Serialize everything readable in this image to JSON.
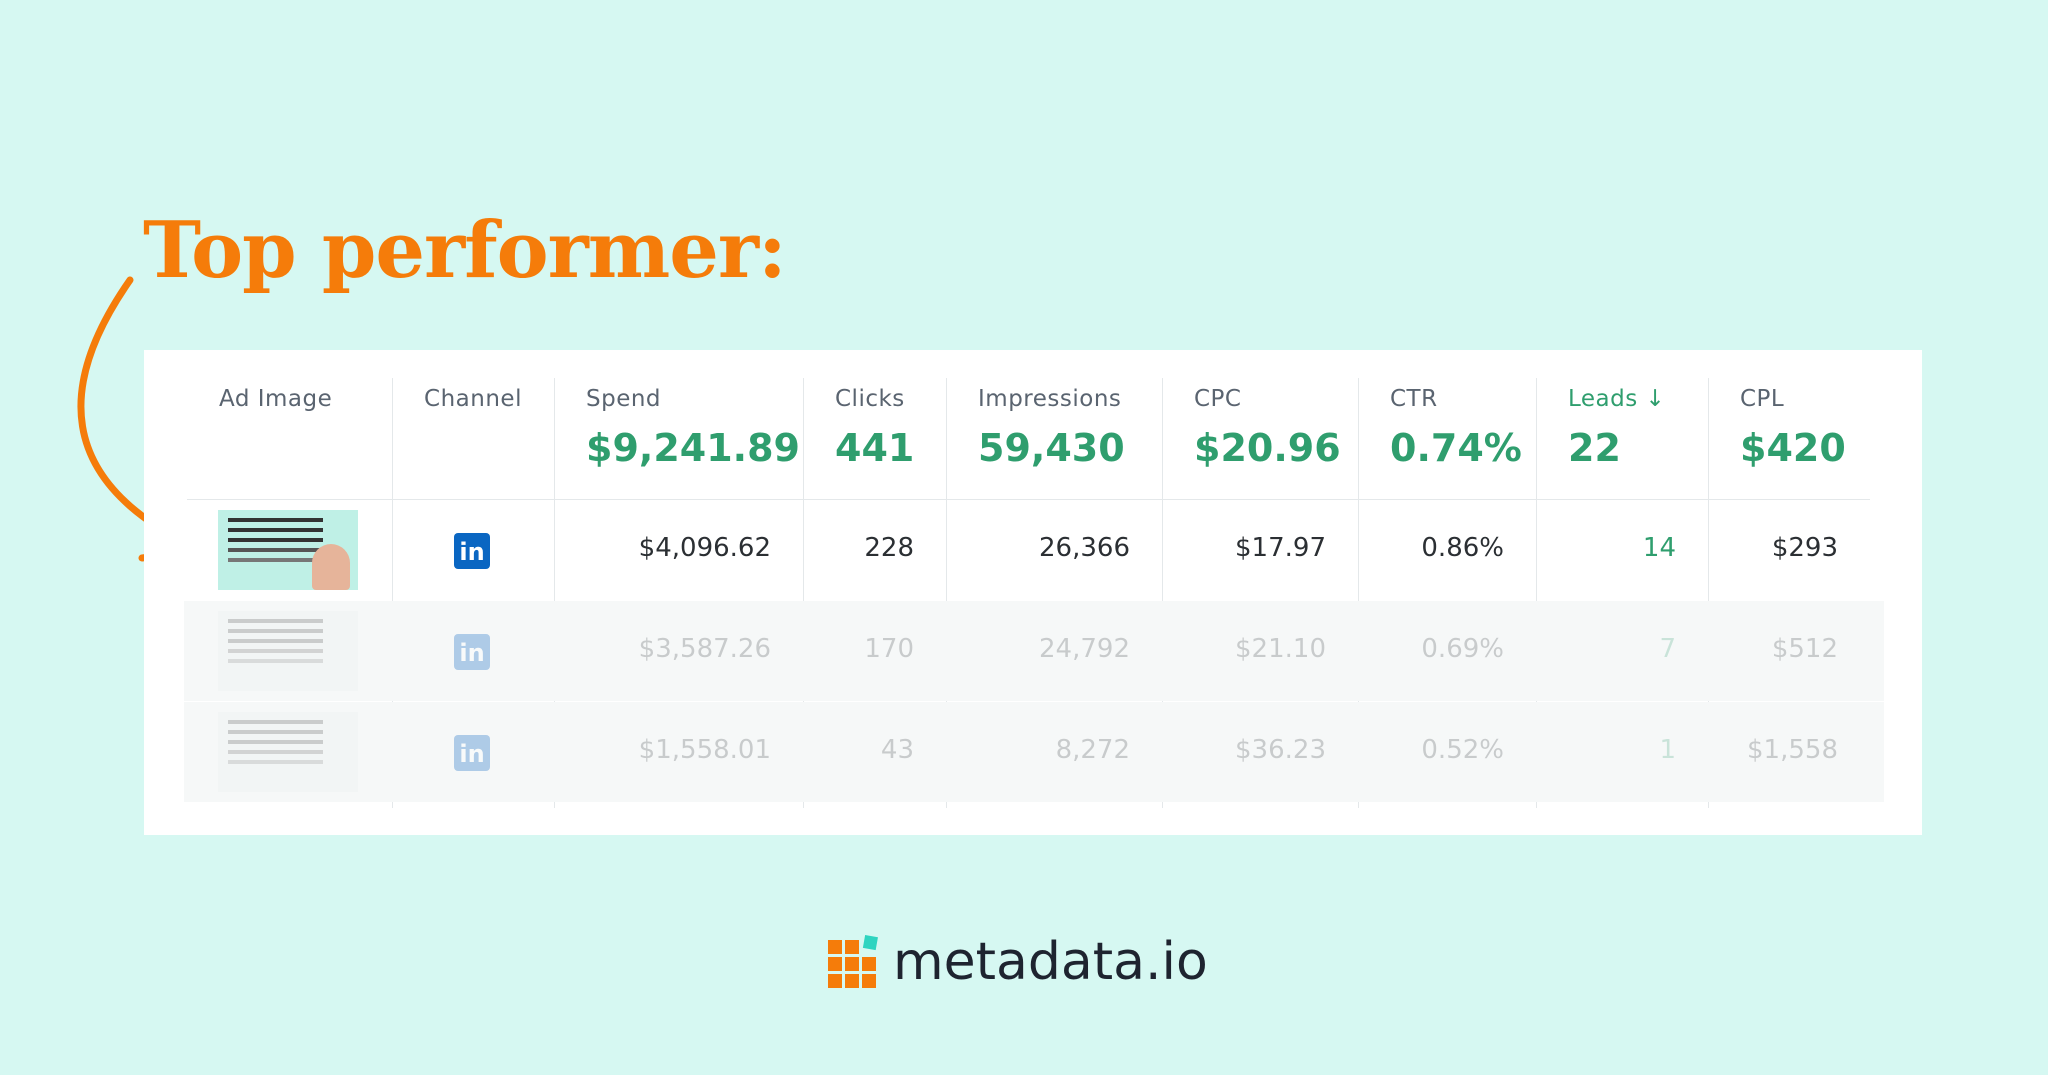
{
  "header": {
    "title": "Top performer:"
  },
  "table": {
    "columns": [
      "Ad Image",
      "Channel",
      "Spend",
      "Clicks",
      "Impressions",
      "CPC",
      "CTR",
      "Leads ↓",
      "CPL"
    ],
    "totals": [
      "$9,241.89",
      "441",
      "59,430",
      "$20.96",
      "0.74%",
      "22",
      "$420"
    ],
    "rows": [
      [
        "$4,096.62",
        "228",
        "26,366",
        "$17.97",
        "0.86%",
        "14",
        "$293"
      ],
      [
        "$3,587.26",
        "170",
        "24,792",
        "$21.10",
        "0.69%",
        "7",
        "$512"
      ],
      [
        "$1,558.01",
        "43",
        "8,272",
        "$36.23",
        "0.52%",
        "1",
        "$1,558"
      ]
    ]
  },
  "footer": {
    "brand": "metadata.io"
  }
}
